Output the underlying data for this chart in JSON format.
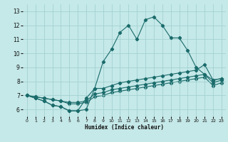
{
  "xlabel": "Humidex (Indice chaleur)",
  "background_color": "#c5e8e8",
  "grid_color": "#9ecece",
  "line_color": "#1a6b6b",
  "xlim": [
    -0.5,
    23.5
  ],
  "ylim": [
    5.5,
    13.5
  ],
  "xticks": [
    0,
    1,
    2,
    3,
    4,
    5,
    6,
    7,
    8,
    9,
    10,
    11,
    12,
    13,
    14,
    15,
    16,
    17,
    18,
    19,
    20,
    21,
    22,
    23
  ],
  "yticks": [
    6,
    7,
    8,
    9,
    10,
    11,
    12,
    13
  ],
  "line1_y": [
    7.0,
    6.8,
    6.6,
    6.3,
    6.2,
    5.9,
    5.9,
    6.0,
    7.5,
    9.4,
    10.3,
    11.5,
    12.0,
    11.0,
    12.4,
    12.6,
    12.0,
    11.1,
    11.1,
    10.2,
    9.0,
    8.5,
    8.1,
    8.2
  ],
  "line2_y": [
    7.0,
    6.8,
    6.6,
    6.3,
    6.2,
    5.9,
    5.9,
    6.8,
    7.5,
    7.5,
    7.7,
    7.9,
    8.0,
    8.1,
    8.2,
    8.3,
    8.4,
    8.5,
    8.6,
    8.7,
    8.8,
    9.2,
    8.1,
    8.2
  ],
  "line3_y": [
    7.0,
    6.9,
    6.8,
    6.7,
    6.6,
    6.5,
    6.5,
    6.6,
    7.1,
    7.2,
    7.4,
    7.5,
    7.6,
    7.7,
    7.8,
    7.9,
    8.0,
    8.1,
    8.2,
    8.3,
    8.4,
    8.5,
    7.9,
    8.1
  ],
  "line4_y": [
    7.0,
    6.9,
    6.8,
    6.7,
    6.6,
    6.4,
    6.4,
    6.5,
    6.9,
    7.0,
    7.2,
    7.3,
    7.4,
    7.5,
    7.6,
    7.7,
    7.8,
    7.9,
    8.0,
    8.1,
    8.2,
    8.3,
    7.7,
    7.9
  ]
}
